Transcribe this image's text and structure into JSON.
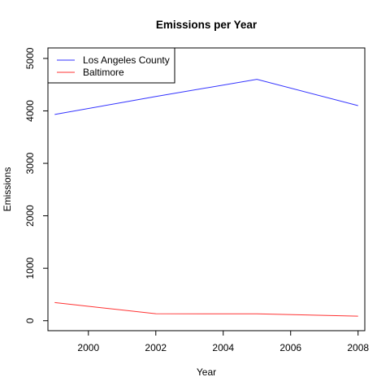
{
  "chart_data": {
    "type": "line",
    "title": "Emissions per Year",
    "xlabel": "Year",
    "ylabel": "Emissions",
    "x": [
      1999,
      2002,
      2005,
      2008
    ],
    "xlim": [
      1998.8,
      2008.2
    ],
    "ylim": [
      -190,
      5200
    ],
    "xticks": [
      2000,
      2002,
      2004,
      2006,
      2008
    ],
    "yticks": [
      0,
      1000,
      2000,
      3000,
      4000,
      5000
    ],
    "grid": false,
    "legend_position": "top-left",
    "series": [
      {
        "name": "Los Angeles County",
        "color": "#3333ff",
        "values": [
          3931,
          4274,
          4602,
          4101
        ]
      },
      {
        "name": "Baltimore",
        "color": "#ff3333",
        "values": [
          346,
          134,
          130,
          88
        ]
      }
    ]
  }
}
